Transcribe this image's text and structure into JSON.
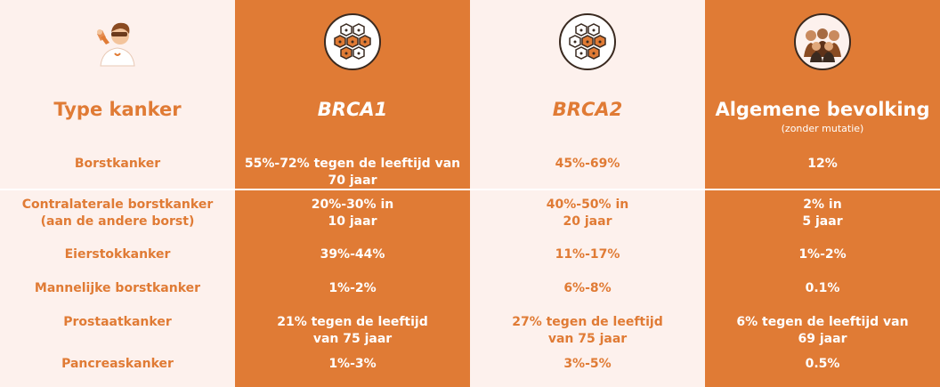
{
  "columns": [
    {
      "icon": "scientist-icon",
      "title": "Type kanker",
      "subtitle": "",
      "cells": [
        "Borstkanker",
        "Contralaterale borstkanker\n(aan de andere borst)",
        "Eierstokkanker",
        "Mannelijke borstkanker",
        "Prostaatkanker",
        "Pancreaskanker"
      ]
    },
    {
      "icon": "dna-cells-icon",
      "title": "BRCA1",
      "subtitle": "",
      "cells": [
        "55%-72% tegen de leeftijd van\n70 jaar",
        "20%-30% in\n10 jaar",
        "39%-44%",
        "1%-2%",
        "21% tegen de leeftijd\nvan 75 jaar",
        "1%-3%"
      ]
    },
    {
      "icon": "dna-cells-icon",
      "title": "BRCA2",
      "subtitle": "",
      "cells": [
        "45%-69%",
        "40%-50% in\n20 jaar",
        "11%-17%",
        "6%-8%",
        "27% tegen de leeftijd\nvan 75 jaar",
        "3%-5%"
      ]
    },
    {
      "icon": "population-group-icon",
      "title": "Algemene bevolking",
      "subtitle": "(zonder mutatie)",
      "cells": [
        "12%",
        "2% in\n5 jaar",
        "1%-2%",
        "0.1%",
        "6% tegen de leeftijd van\n69 jaar",
        "0.5%"
      ]
    }
  ],
  "colors": {
    "accent": "#e07b35",
    "light_bg": "#fdf1ed",
    "text_on_accent": "#ffffff"
  }
}
